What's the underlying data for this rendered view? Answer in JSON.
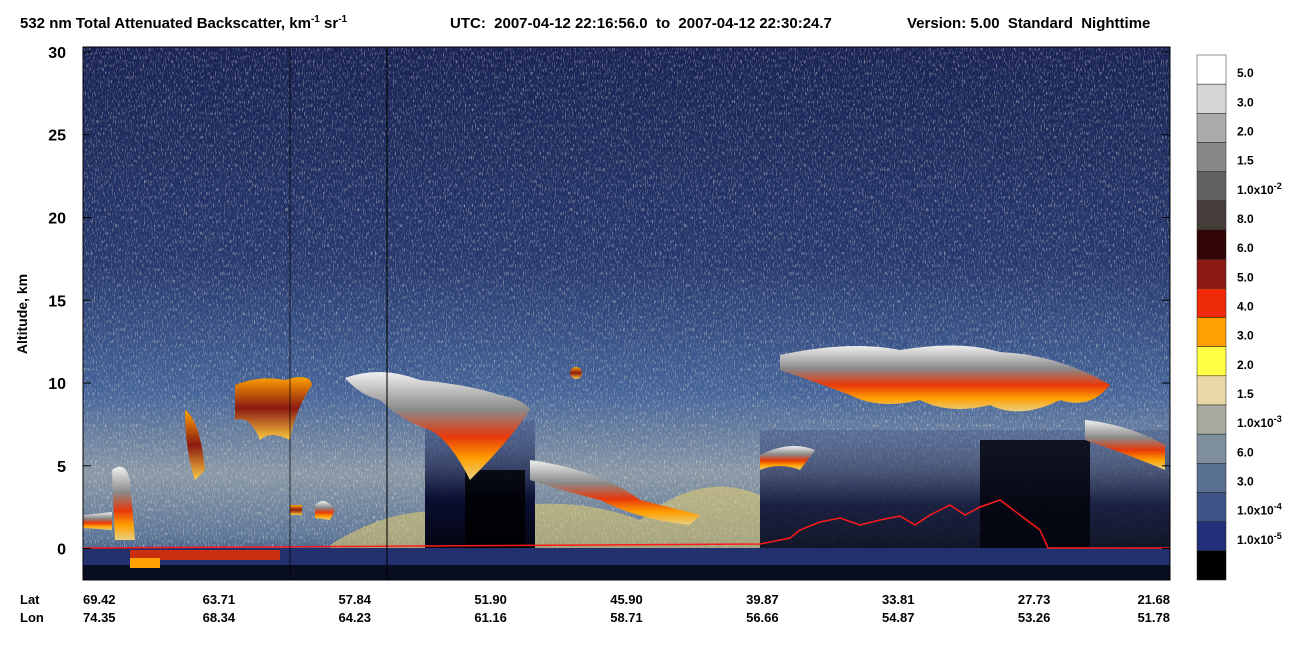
{
  "chart_data": {
    "type": "curtain",
    "title": [
      "532 nm Total Attenuated Backscatter, km",
      "-1",
      " sr",
      "-1"
    ],
    "utc": "UTC:  2007-04-12 22:16:56.0  to  2007-04-12 22:30:24.7",
    "version": "Version: 5.00  Standard  Nighttime",
    "y_label": "Altitude, km",
    "ylim": [
      -1.9,
      30.3
    ],
    "yticks": [
      0,
      5,
      10,
      15,
      20,
      25,
      30
    ],
    "x_row_labels": [
      "Lat",
      "Lon"
    ],
    "lat": [
      "69.42",
      "63.71",
      "57.84",
      "51.90",
      "45.90",
      "39.87",
      "33.81",
      "27.73",
      "21.68"
    ],
    "lon": [
      "74.35",
      "68.34",
      "64.23",
      "61.16",
      "58.71",
      "56.66",
      "54.87",
      "53.26",
      "51.78"
    ],
    "colorbar": {
      "colors": [
        "#ffffff",
        "#d6d6d6",
        "#ababab",
        "#888888",
        "#626262",
        "#463c3a",
        "#320404",
        "#8a1a12",
        "#ee2a08",
        "#ffa000",
        "#ffff44",
        "#e8d8a8",
        "#a8aaa0",
        "#7e8e9c",
        "#5a7092",
        "#3c5488",
        "#22307a",
        "#000000"
      ],
      "labels": [
        "5.0",
        "3.0",
        "2.0",
        "1.5",
        {
          "text": "1.0x10",
          "sup": "-2"
        },
        "8.0",
        "6.0",
        "5.0",
        "4.0",
        "3.0",
        "2.0",
        "1.5",
        {
          "text": "1.0x10",
          "sup": "-3"
        },
        "6.0",
        "3.0",
        {
          "text": "1.0x10",
          "sup": "-4"
        },
        {
          "text": "1.0x10",
          "sup": "-5"
        }
      ]
    }
  }
}
